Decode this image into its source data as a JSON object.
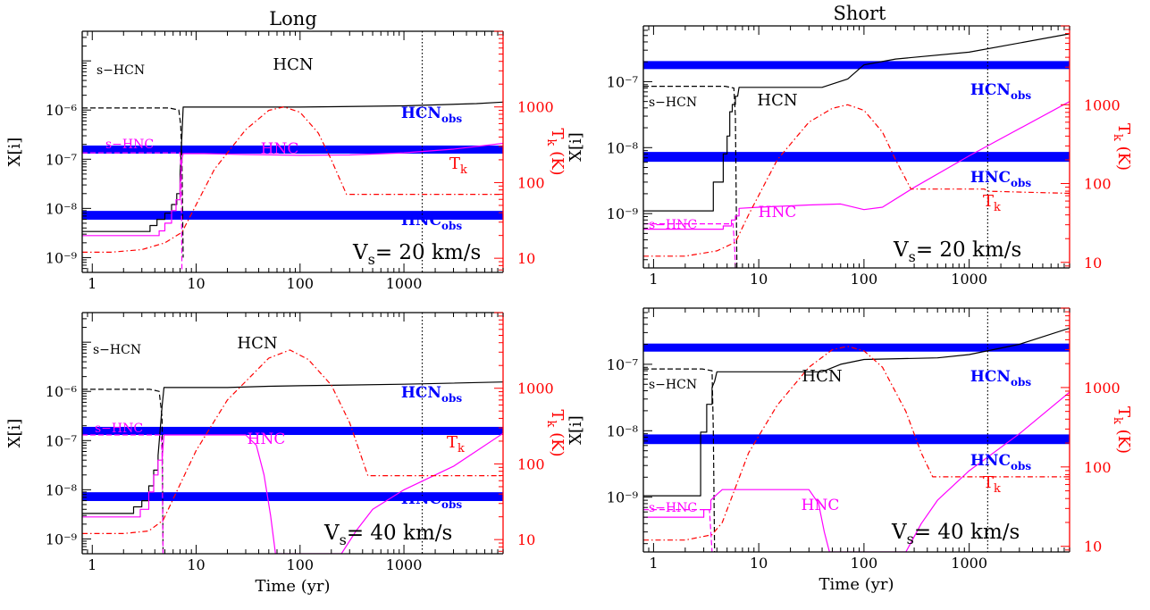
{
  "titles": {
    "left": "Long",
    "right": "Short"
  },
  "axes": {
    "xlabel": "Time (yr)",
    "ylabel": "X[i]",
    "y2label_main": "T",
    "y2label_sub": "k",
    "y2label_unit": " (K)",
    "x_ticks": [
      "1",
      "10",
      "100",
      "1000"
    ],
    "x_tick_values": [
      1,
      10,
      100,
      1000
    ],
    "y2_ticks": [
      "10",
      "100",
      "1000"
    ],
    "y2_tick_values": [
      10,
      100,
      1000
    ]
  },
  "labels": {
    "hcn": "HCN",
    "hnc": "HNC",
    "shcn": "s−HCN",
    "shnc": "s−HNC",
    "hcn_obs_main": "HCN",
    "hnc_obs_main": "HNC",
    "obs_sub": "obs",
    "tk_main": "T",
    "tk_sub": "k",
    "vs_main": "V",
    "vs_sub": "s",
    "vs_20": "= 20 km/s",
    "vs_40": "= 40 km/s"
  },
  "colors": {
    "hcn": "#000000",
    "hnc": "#ff00ff",
    "tk": "#ff0000",
    "obs_band": "#0000ff",
    "axis": "#000000",
    "axis_right": "#ff0000"
  },
  "chart_data": [
    {
      "type": "line",
      "panel": "Long, V_s = 20 km/s",
      "title": "Long",
      "x_scale": "log",
      "y_scale": "log",
      "y2_scale": "log",
      "xlim": [
        0.8,
        9000
      ],
      "ylim": [
        5e-10,
        4e-05
      ],
      "y2lim": [
        6.5,
        10000
      ],
      "ylabel": "X[i]",
      "y2label": "T_k (K)",
      "xlabel": "",
      "y_ticks": [
        "10⁻⁹",
        "10⁻⁸",
        "10⁻⁷",
        "10⁻⁶"
      ],
      "y_tick_values": [
        1e-09,
        1e-08,
        1e-07,
        1e-06
      ],
      "vline_time": 1500,
      "obs_bands": [
        {
          "name": "HCN_obs",
          "range": [
            1.3e-07,
            1.9e-07
          ]
        },
        {
          "name": "HNC_obs",
          "range": [
            5.9e-09,
            8.9e-09
          ]
        }
      ],
      "series": [
        {
          "name": "s-HCN",
          "style": "dashed",
          "color": "#000000",
          "x": [
            0.8,
            5.5,
            6.8,
            7.1,
            7.3,
            7.5
          ],
          "y": [
            1.1e-06,
            1.1e-06,
            1e-06,
            5e-07,
            1e-07,
            1e-09
          ]
        },
        {
          "name": "HCN",
          "style": "solid",
          "color": "#000000",
          "x": [
            0.8,
            3.6,
            3.6,
            4.2,
            4.2,
            5.0,
            5.0,
            5.8,
            5.8,
            6.5,
            6.5,
            7.0,
            7.0,
            7.3,
            7.5,
            100,
            1000,
            5000,
            9000
          ],
          "y": [
            3.4e-09,
            3.4e-09,
            4.5e-09,
            4.5e-09,
            6e-09,
            6e-09,
            8e-09,
            8e-09,
            1.2e-08,
            1.2e-08,
            2e-08,
            2e-08,
            5e-08,
            3e-07,
            1.15e-06,
            1.15e-06,
            1.22e-06,
            1.35e-06,
            1.45e-06
          ]
        },
        {
          "name": "s-HNC",
          "style": "dashed",
          "color": "#ff00ff",
          "x": [
            0.8,
            5.5,
            7.0,
            7.2,
            7.3
          ],
          "y": [
            1.35e-07,
            1.35e-07,
            1.35e-07,
            5e-08,
            5e-10
          ]
        },
        {
          "name": "HNC",
          "style": "solid",
          "color": "#ff00ff",
          "x": [
            0.8,
            4.4,
            4.4,
            5.0,
            5.0,
            5.8,
            5.8,
            6.4,
            6.4,
            7.0,
            7.0,
            7.3,
            7.5,
            12,
            30,
            100,
            300,
            1000,
            3000,
            9000
          ],
          "y": [
            2.8e-09,
            2.8e-09,
            3.5e-09,
            3.5e-09,
            5e-09,
            5e-09,
            9e-09,
            9e-09,
            1.5e-08,
            1.5e-08,
            3e-08,
            1e-07,
            1.3e-07,
            1.3e-07,
            1.25e-07,
            1.2e-07,
            1.22e-07,
            1.35e-07,
            1.6e-07,
            2.1e-07
          ]
        },
        {
          "name": "Tk",
          "style": "dashdot",
          "color": "#ff0000",
          "x": [
            0.8,
            1.5,
            3,
            5,
            7.3,
            15,
            30,
            50,
            70,
            100,
            150,
            200,
            280,
            9000
          ],
          "y": [
            12,
            12,
            13,
            16,
            22,
            150,
            500,
            900,
            1000,
            850,
            450,
            200,
            70,
            70
          ]
        }
      ]
    },
    {
      "type": "line",
      "panel": "Short, V_s = 20 km/s",
      "title": "Short",
      "x_scale": "log",
      "y_scale": "log",
      "y2_scale": "log",
      "xlim": [
        0.8,
        9000
      ],
      "ylim": [
        1.5e-10,
        7e-07
      ],
      "y2lim": [
        8.5,
        10000
      ],
      "ylabel": "X[i]",
      "y2label": "T_k (K)",
      "xlabel": "",
      "y_ticks": [
        "10⁻⁹",
        "10⁻⁸",
        "10⁻⁷"
      ],
      "y_tick_values": [
        1e-09,
        1e-08,
        1e-07
      ],
      "vline_time": 1500,
      "obs_bands": [
        {
          "name": "HCN_obs",
          "range": [
            1.55e-07,
            2.05e-07
          ]
        },
        {
          "name": "HNC_obs",
          "range": [
            6.1e-09,
            8.6e-09
          ]
        }
      ],
      "series": [
        {
          "name": "s-HCN",
          "style": "dashed",
          "color": "#000000",
          "x": [
            0.8,
            4.8,
            5.8,
            6.0,
            6.2
          ],
          "y": [
            8.5e-08,
            8.5e-08,
            8e-08,
            3e-08,
            1.5e-10
          ]
        },
        {
          "name": "HCN",
          "style": "solid",
          "color": "#000000",
          "x": [
            0.8,
            3.7,
            3.7,
            4.6,
            4.6,
            5.0,
            5.0,
            5.3,
            5.3,
            5.6,
            5.6,
            6.0,
            6.0,
            6.3,
            6.5,
            40,
            70,
            100,
            200,
            1000,
            9000
          ],
          "y": [
            1.1e-09,
            1.1e-09,
            3e-09,
            3e-09,
            8e-09,
            8e-09,
            1.5e-08,
            1.5e-08,
            3.5e-08,
            3.5e-08,
            4.5e-08,
            4.5e-08,
            6e-08,
            6e-08,
            8.2e-08,
            8.2e-08,
            1.1e-07,
            1.8e-07,
            2.2e-07,
            2.8e-07,
            5.3e-07
          ]
        },
        {
          "name": "s-HNC",
          "style": "dashed",
          "color": "#ff00ff",
          "x": [
            0.8,
            4.8,
            5.7,
            5.9,
            6.0
          ],
          "y": [
            7e-10,
            7e-10,
            7e-10,
            3e-10,
            1.5e-10
          ]
        },
        {
          "name": "HNC",
          "style": "solid",
          "color": "#ff00ff",
          "x": [
            0.8,
            4.6,
            4.6,
            5.5,
            5.5,
            6.0,
            6.0,
            6.5,
            6.5,
            10,
            30,
            60,
            100,
            150,
            300,
            1000,
            9000
          ],
          "y": [
            5.8e-10,
            5.8e-10,
            6.5e-10,
            6.5e-10,
            8e-10,
            8e-10,
            9.2e-10,
            9.2e-10,
            1.2e-09,
            1.25e-09,
            1.35e-09,
            1.4e-09,
            1.15e-09,
            1.25e-09,
            2.5e-09,
            7.5e-09,
            5e-08
          ]
        },
        {
          "name": "Tk",
          "style": "dashdot",
          "color": "#ff0000",
          "x": [
            0.8,
            2,
            4,
            6,
            8,
            15,
            30,
            50,
            70,
            100,
            150,
            200,
            280,
            1400,
            1500,
            9000
          ],
          "y": [
            12,
            12,
            14,
            18,
            40,
            200,
            600,
            900,
            1000,
            850,
            450,
            200,
            85,
            85,
            80,
            75
          ]
        }
      ]
    },
    {
      "type": "line",
      "panel": "Long, V_s = 40 km/s",
      "title": "",
      "x_scale": "log",
      "y_scale": "log",
      "y2_scale": "log",
      "xlim": [
        0.8,
        9000
      ],
      "ylim": [
        5e-10,
        4e-05
      ],
      "y2lim": [
        6.5,
        10000
      ],
      "ylabel": "X[i]",
      "y2label": "T_k (K)",
      "xlabel": "Time (yr)",
      "y_ticks": [
        "10⁻⁹",
        "10⁻⁸",
        "10⁻⁷",
        "10⁻⁶"
      ],
      "y_tick_values": [
        1e-09,
        1e-08,
        1e-07,
        1e-06
      ],
      "vline_time": 1500,
      "obs_bands": [
        {
          "name": "HCN_obs",
          "range": [
            1.3e-07,
            1.9e-07
          ]
        },
        {
          "name": "HNC_obs",
          "range": [
            5.9e-09,
            8.9e-09
          ]
        }
      ],
      "series": [
        {
          "name": "s-HCN",
          "style": "dashed",
          "color": "#000000",
          "x": [
            0.8,
            3.6,
            4.4,
            4.7,
            4.8
          ],
          "y": [
            1.1e-06,
            1.1e-06,
            1e-06,
            3e-07,
            5e-10
          ]
        },
        {
          "name": "HCN",
          "style": "solid",
          "color": "#000000",
          "x": [
            0.8,
            2.5,
            2.5,
            3.0,
            3.0,
            3.5,
            3.5,
            3.9,
            3.9,
            4.3,
            4.3,
            4.7,
            4.9,
            20,
            50,
            100,
            1000,
            9000
          ],
          "y": [
            3.3e-09,
            3.3e-09,
            4.5e-09,
            4.5e-09,
            6e-09,
            6e-09,
            1.2e-08,
            1.2e-08,
            2.5e-08,
            2.5e-08,
            5e-08,
            5e-07,
            1.2e-06,
            1.2e-06,
            1.27e-06,
            1.3e-06,
            1.4e-06,
            1.55e-06
          ]
        },
        {
          "name": "s-HNC",
          "style": "dashed",
          "color": "#ff00ff",
          "x": [
            0.8,
            3.6,
            4.6,
            4.7,
            4.8
          ],
          "y": [
            1.3e-07,
            1.3e-07,
            1.3e-07,
            5e-08,
            5e-10
          ]
        },
        {
          "name": "HNC",
          "style": "solid",
          "color": "#ff00ff",
          "x": [
            0.8,
            2.9,
            2.9,
            3.5,
            3.5,
            3.9,
            3.9,
            4.3,
            4.3,
            4.7,
            4.9,
            30,
            38,
            45,
            52,
            58,
            250,
            350,
            500,
            1000,
            3000,
            9000
          ],
          "y": [
            2.8e-09,
            2.8e-09,
            4e-09,
            4e-09,
            9e-09,
            9e-09,
            2e-08,
            2e-08,
            4e-08,
            4e-08,
            1.3e-07,
            1.3e-07,
            8e-08,
            2e-08,
            3e-09,
            5e-10,
            5e-10,
            1.5e-09,
            4e-09,
            1e-08,
            3e-08,
            1.4e-07
          ]
        },
        {
          "name": "Tk",
          "style": "dashdot",
          "color": "#ff0000",
          "x": [
            0.8,
            2,
            3.5,
            4.8,
            10,
            20,
            50,
            80,
            120,
            200,
            300,
            450,
            9000
          ],
          "y": [
            12,
            12,
            13,
            18,
            150,
            700,
            2500,
            3200,
            2400,
            1100,
            350,
            70,
            70
          ]
        }
      ]
    },
    {
      "type": "line",
      "panel": "Short, V_s = 40 km/s",
      "title": "",
      "x_scale": "log",
      "y_scale": "log",
      "y2_scale": "log",
      "xlim": [
        0.8,
        9000
      ],
      "ylim": [
        1.5e-10,
        7e-07
      ],
      "y2lim": [
        8.5,
        10000
      ],
      "ylabel": "X[i]",
      "y2label": "T_k (K)",
      "xlabel": "Time (yr)",
      "y_ticks": [
        "10⁻⁹",
        "10⁻⁸",
        "10⁻⁷"
      ],
      "y_tick_values": [
        1e-09,
        1e-08,
        1e-07
      ],
      "vline_time": 1500,
      "obs_bands": [
        {
          "name": "HCN_obs",
          "range": [
            1.55e-07,
            2.05e-07
          ]
        },
        {
          "name": "HNC_obs",
          "range": [
            6.3e-09,
            8.8e-09
          ]
        }
      ],
      "series": [
        {
          "name": "s-HCN",
          "style": "dashed",
          "color": "#000000",
          "x": [
            0.8,
            2.9,
            3.6,
            3.7,
            3.8
          ],
          "y": [
            8.5e-08,
            8.5e-08,
            8e-08,
            1e-08,
            1.5e-10
          ]
        },
        {
          "name": "HCN",
          "style": "solid",
          "color": "#000000",
          "x": [
            0.8,
            2.8,
            2.8,
            3.2,
            3.2,
            3.6,
            3.6,
            3.8,
            4.0,
            40,
            60,
            100,
            500,
            1000,
            3000,
            9000
          ],
          "y": [
            1.05e-09,
            1.05e-09,
            9.5e-09,
            9.5e-09,
            2.5e-08,
            2.5e-08,
            4.5e-08,
            5.5e-08,
            7.7e-08,
            7.7e-08,
            1e-07,
            1.18e-07,
            1.25e-07,
            1.4e-07,
            2e-07,
            3.5e-07
          ]
        },
        {
          "name": "s-HNC",
          "style": "dashed",
          "color": "#ff00ff",
          "x": [
            0.8,
            2.9,
            3.4,
            3.5,
            3.6
          ],
          "y": [
            6.5e-10,
            6.5e-10,
            6.5e-10,
            3e-10,
            1.5e-10
          ]
        },
        {
          "name": "HNC",
          "style": "solid",
          "color": "#ff00ff",
          "x": [
            0.8,
            3.0,
            3.0,
            3.5,
            3.5,
            4.0,
            4.5,
            30,
            37,
            42,
            47,
            250,
            350,
            500,
            1000,
            3000,
            9000
          ],
          "y": [
            5e-10,
            5e-10,
            6.5e-10,
            6.5e-10,
            9e-10,
            1.1e-09,
            1.3e-09,
            1.3e-09,
            8e-10,
            3e-10,
            1.5e-10,
            1.5e-10,
            4e-10,
            9e-10,
            2.5e-09,
            9e-09,
            3.8e-08
          ]
        },
        {
          "name": "Tk",
          "style": "dashdot",
          "color": "#ff0000",
          "x": [
            0.8,
            2,
            3.6,
            4.5,
            8,
            15,
            30,
            50,
            70,
            100,
            150,
            250,
            350,
            450,
            9000
          ],
          "y": [
            12,
            12,
            14,
            20,
            150,
            600,
            1800,
            3000,
            3300,
            2900,
            1800,
            500,
            150,
            75,
            75
          ]
        }
      ]
    }
  ]
}
